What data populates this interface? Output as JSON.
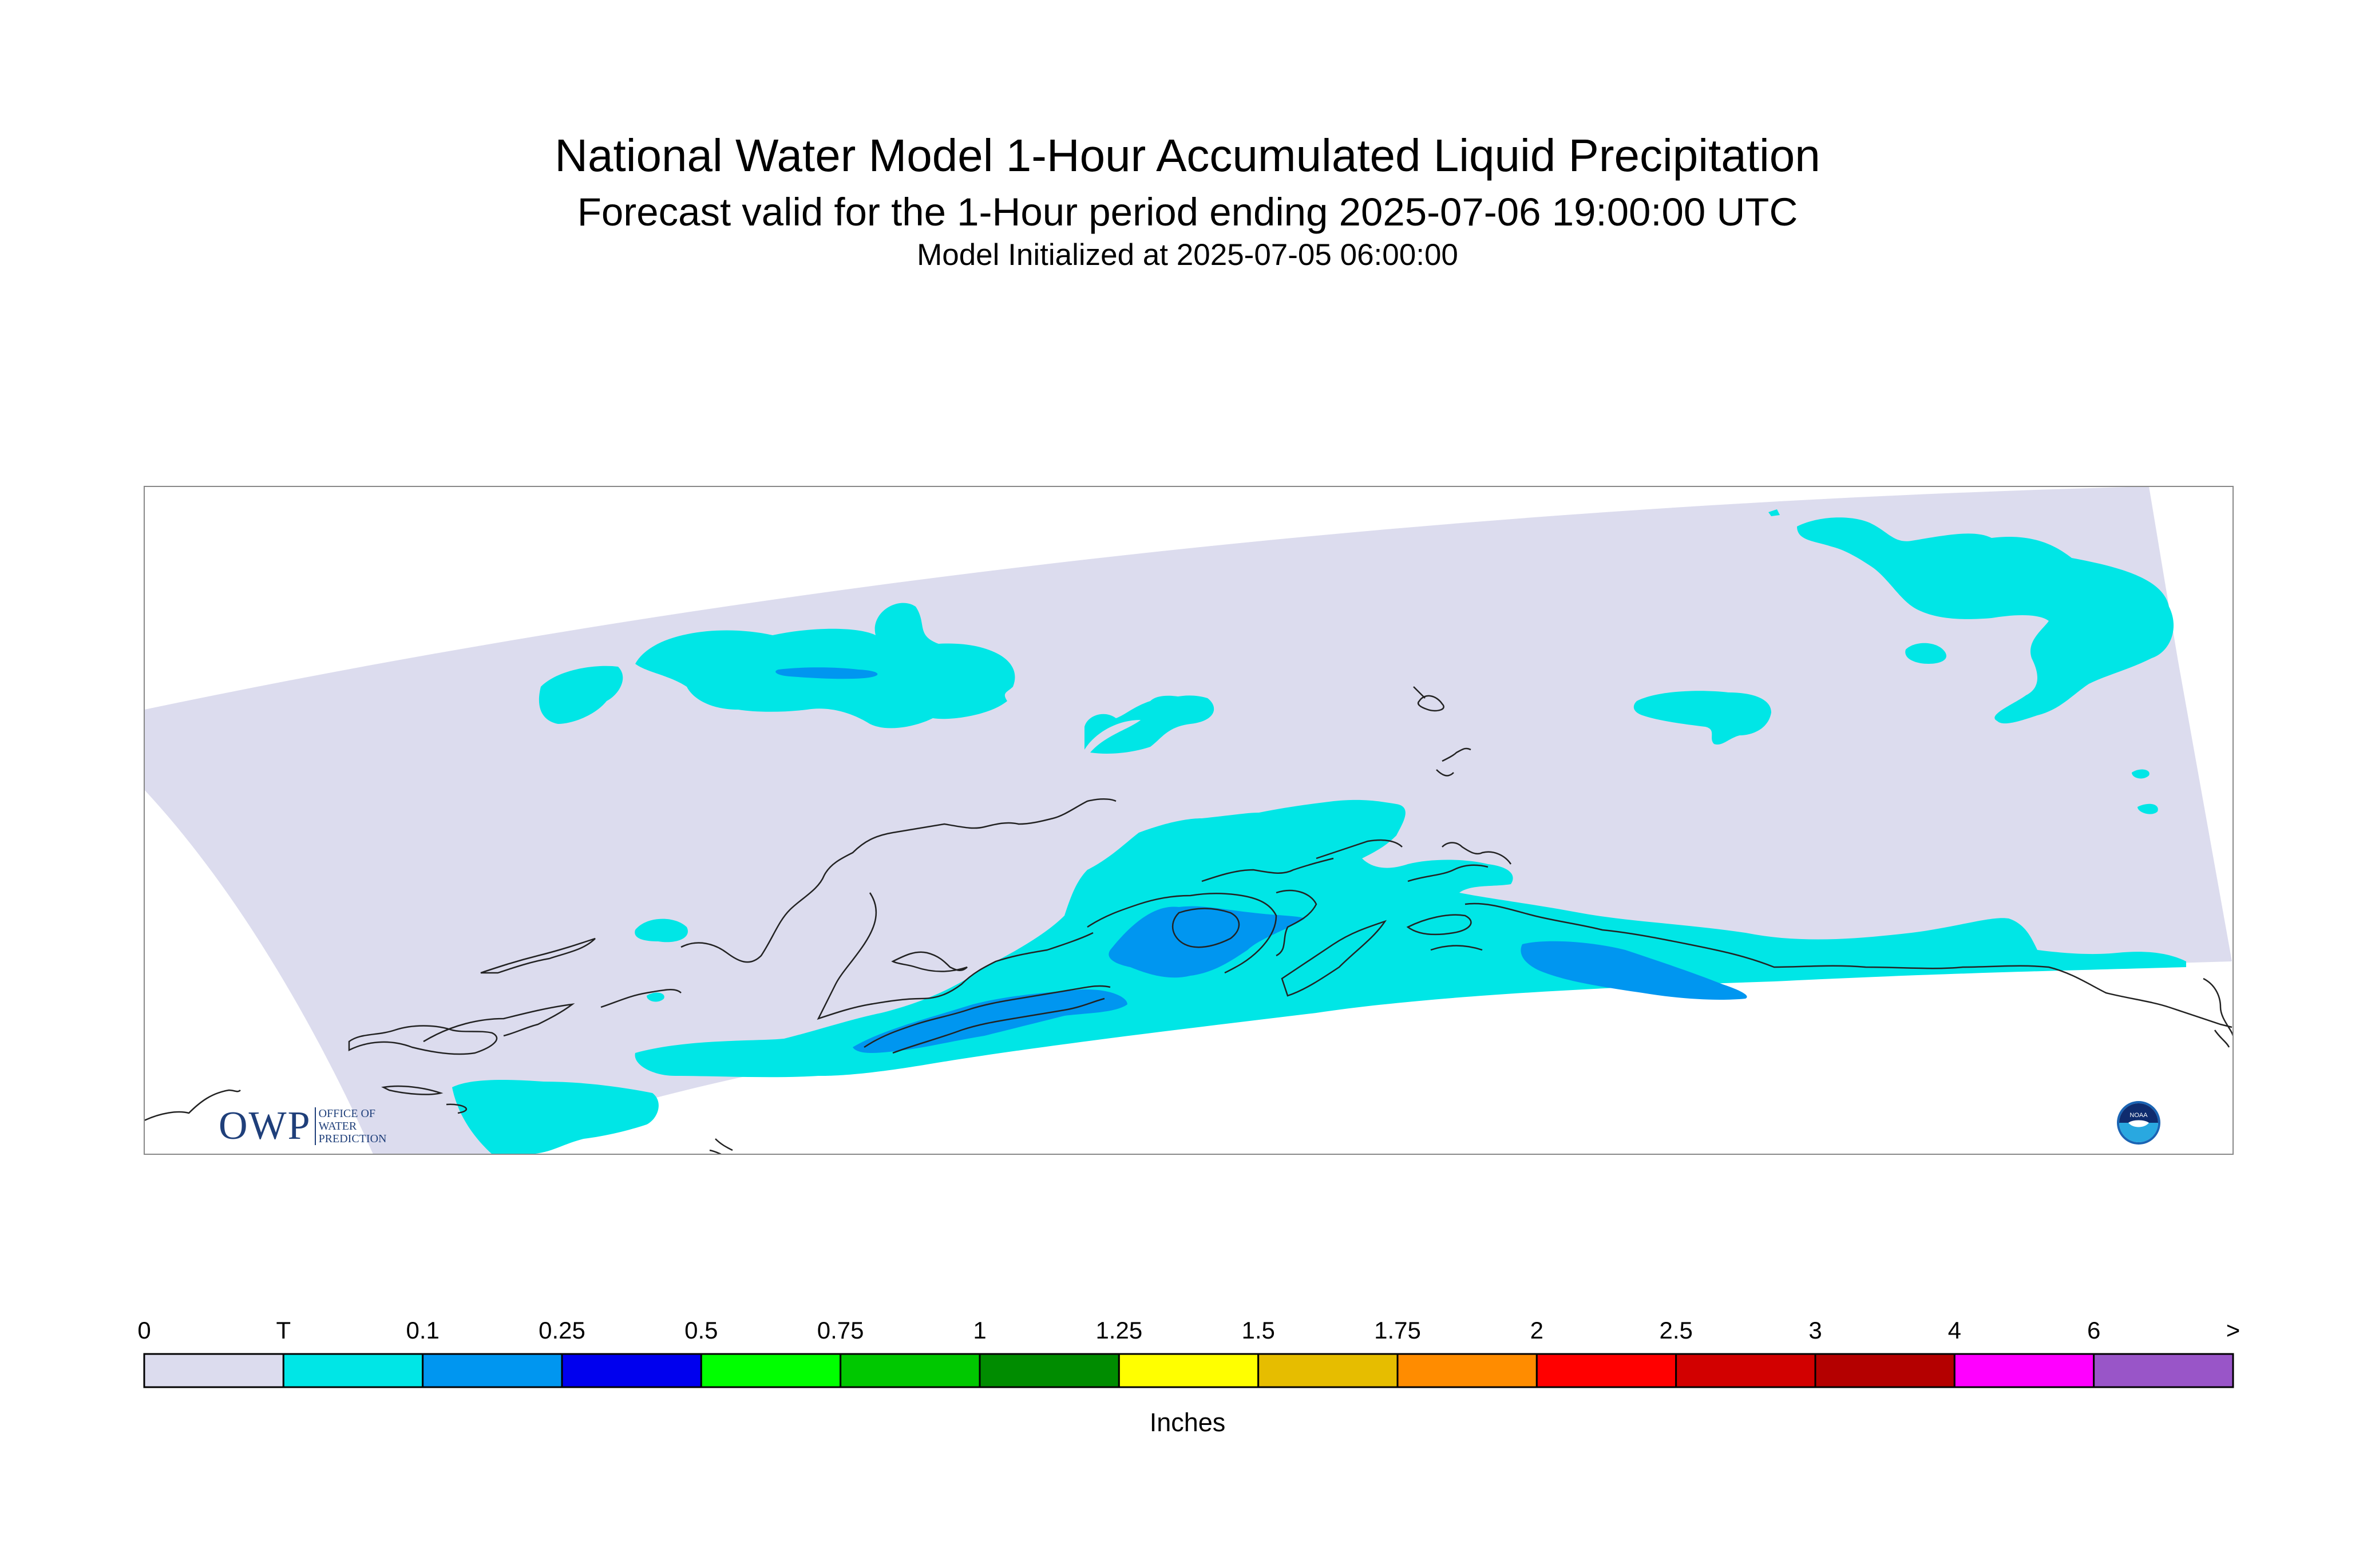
{
  "title": "National Water Model 1-Hour Accumulated Liquid Precipitation",
  "subtitle": "Forecast valid for the 1-Hour period ending 2025-07-06 19:00:00 UTC",
  "init": "Model Initialized at 2025-07-05 06:00:00",
  "units": "Inches",
  "logo": {
    "owp": "OWP",
    "owp_small": [
      "OFFICE OF",
      "WATER",
      "PREDICTION"
    ],
    "noaa": "NOAA"
  },
  "legend": {
    "labels": [
      "0",
      "T",
      "0.1",
      "0.25",
      "0.5",
      "0.75",
      "1",
      "1.25",
      "1.5",
      "1.75",
      "2",
      "2.5",
      "3",
      "4",
      "6",
      ">"
    ],
    "colors": [
      "#dcdcee",
      "#00e6e6",
      "#0096f0",
      "#0000ee",
      "#00ff00",
      "#00c800",
      "#008c00",
      "#ffff00",
      "#e6bd00",
      "#ff8c00",
      "#ff0000",
      "#d20000",
      "#b40000",
      "#ff00ff",
      "#9955c8"
    ]
  },
  "colors": {
    "domain": "#dcdcee",
    "trace": "#00e6e6",
    "light": "#0096f0",
    "coast": "#222222"
  }
}
